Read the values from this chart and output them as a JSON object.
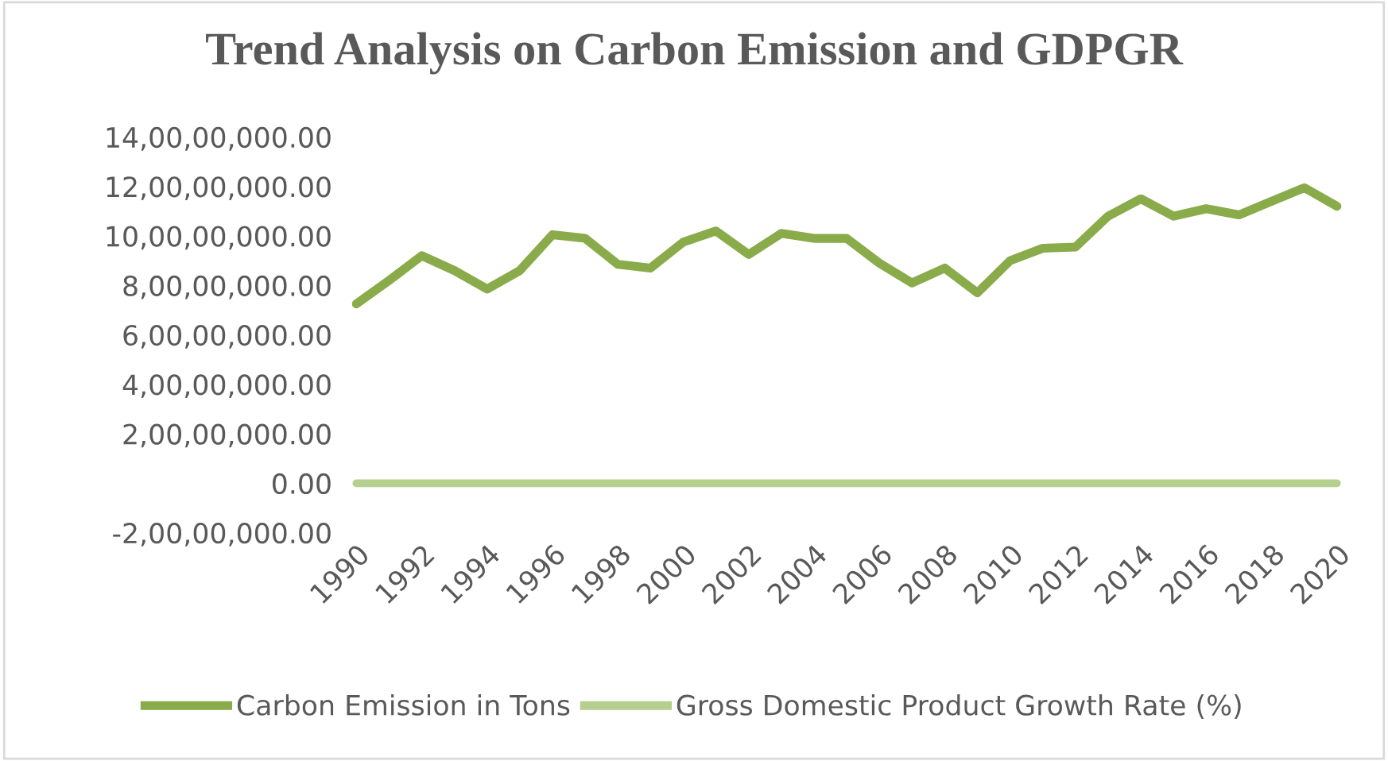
{
  "chart_data": {
    "type": "line",
    "title": "Trend Analysis on Carbon Emission and GDPGR",
    "categories": [
      "1990",
      null,
      "1992",
      null,
      "1994",
      null,
      "1996",
      null,
      "1998",
      null,
      "2000",
      null,
      "2002",
      null,
      "2004",
      null,
      "2006",
      null,
      "2008",
      null,
      "2010",
      null,
      "2012",
      null,
      "2014",
      null,
      "2016",
      null,
      "2018",
      null,
      "2020"
    ],
    "series": [
      {
        "name": "Carbon Emission in Tons",
        "color": "#8aab4a",
        "values": [
          72500000,
          82000000,
          92000000,
          86000000,
          78500000,
          86000000,
          100500000,
          99000000,
          88500000,
          87000000,
          97500000,
          102000000,
          92500000,
          101000000,
          99000000,
          99000000,
          89000000,
          81000000,
          87000000,
          77000000,
          90000000,
          95000000,
          95500000,
          108000000,
          115000000,
          108000000,
          111000000,
          108500000,
          114000000,
          119500000,
          112000000
        ]
      },
      {
        "name": "Gross Domestic Product Growth Rate (%)",
        "color": "#b5cf8e",
        "values": [
          0,
          0,
          0,
          0,
          0,
          0,
          0,
          0,
          0,
          0,
          0,
          0,
          0,
          0,
          0,
          0,
          0,
          0,
          0,
          0,
          0,
          0,
          0,
          0,
          0,
          0,
          0,
          0,
          0,
          0,
          0
        ]
      }
    ],
    "ylim": [
      -20000000,
      140000000
    ],
    "yticks": [
      {
        "value": -20000000,
        "label": "-2,00,00,000.00"
      },
      {
        "value": 0,
        "label": "0.00"
      },
      {
        "value": 20000000,
        "label": "2,00,00,000.00"
      },
      {
        "value": 40000000,
        "label": "4,00,00,000.00"
      },
      {
        "value": 60000000,
        "label": "6,00,00,000.00"
      },
      {
        "value": 80000000,
        "label": "8,00,00,000.00"
      },
      {
        "value": 100000000,
        "label": "10,00,00,000.00"
      },
      {
        "value": 120000000,
        "label": "12,00,00,000.00"
      },
      {
        "value": 140000000,
        "label": "14,00,00,000.00"
      }
    ],
    "grid": false,
    "legend": "bottom",
    "marker": "none",
    "line_style": "solid"
  }
}
